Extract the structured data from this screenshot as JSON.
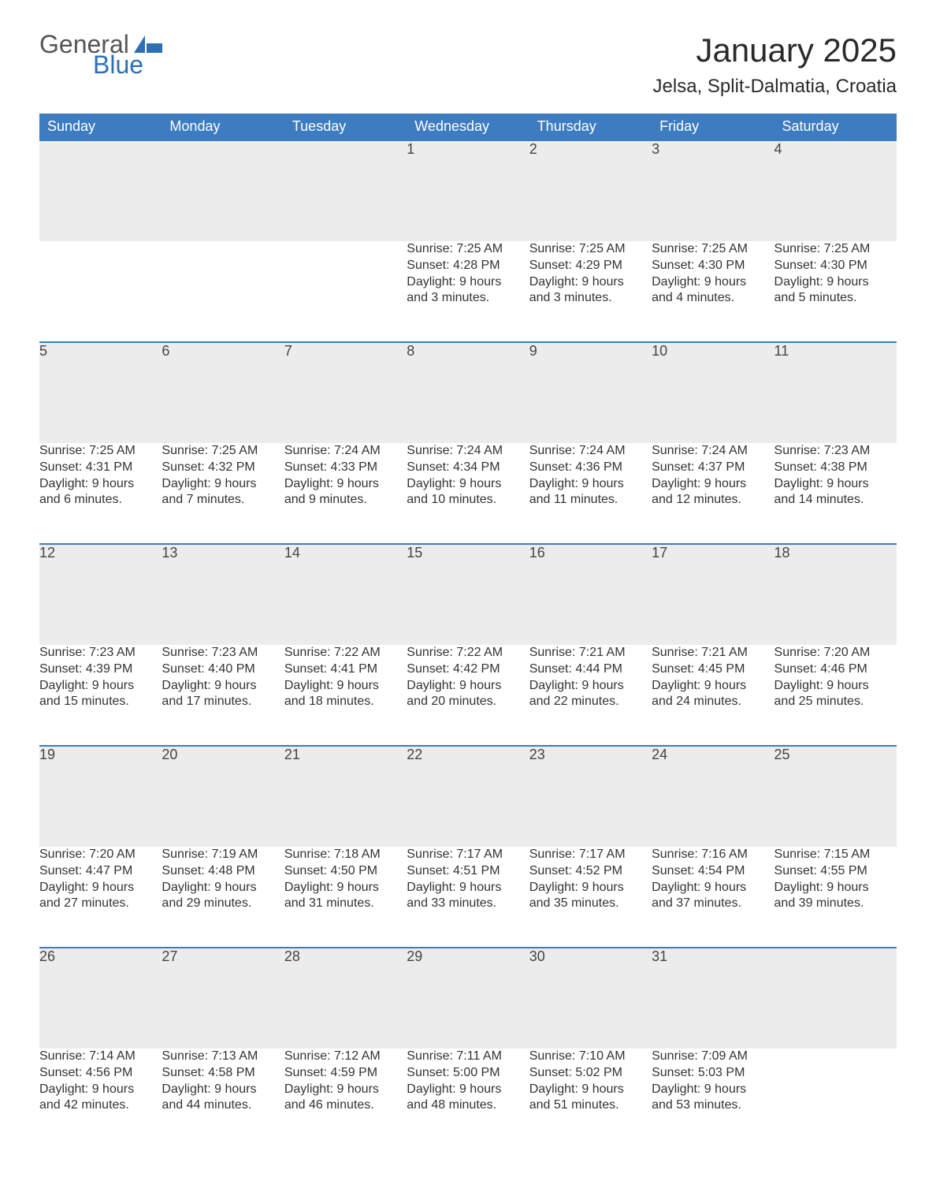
{
  "logo": {
    "text1": "General",
    "text2": "Blue",
    "shape_color": "#2e6fb4"
  },
  "title": "January 2025",
  "location": "Jelsa, Split-Dalmatia, Croatia",
  "colors": {
    "header_bg": "#3d7cc0",
    "header_text": "#ffffff",
    "daynum_bg": "#ececec",
    "border_top": "#3d7cc0",
    "body_text": "#333333",
    "page_bg": "#ffffff"
  },
  "weekdays": [
    "Sunday",
    "Monday",
    "Tuesday",
    "Wednesday",
    "Thursday",
    "Friday",
    "Saturday"
  ],
  "weeks": [
    [
      null,
      null,
      null,
      {
        "n": "1",
        "sunrise": "Sunrise: 7:25 AM",
        "sunset": "Sunset: 4:28 PM",
        "d1": "Daylight: 9 hours",
        "d2": "and 3 minutes."
      },
      {
        "n": "2",
        "sunrise": "Sunrise: 7:25 AM",
        "sunset": "Sunset: 4:29 PM",
        "d1": "Daylight: 9 hours",
        "d2": "and 3 minutes."
      },
      {
        "n": "3",
        "sunrise": "Sunrise: 7:25 AM",
        "sunset": "Sunset: 4:30 PM",
        "d1": "Daylight: 9 hours",
        "d2": "and 4 minutes."
      },
      {
        "n": "4",
        "sunrise": "Sunrise: 7:25 AM",
        "sunset": "Sunset: 4:30 PM",
        "d1": "Daylight: 9 hours",
        "d2": "and 5 minutes."
      }
    ],
    [
      {
        "n": "5",
        "sunrise": "Sunrise: 7:25 AM",
        "sunset": "Sunset: 4:31 PM",
        "d1": "Daylight: 9 hours",
        "d2": "and 6 minutes."
      },
      {
        "n": "6",
        "sunrise": "Sunrise: 7:25 AM",
        "sunset": "Sunset: 4:32 PM",
        "d1": "Daylight: 9 hours",
        "d2": "and 7 minutes."
      },
      {
        "n": "7",
        "sunrise": "Sunrise: 7:24 AM",
        "sunset": "Sunset: 4:33 PM",
        "d1": "Daylight: 9 hours",
        "d2": "and 9 minutes."
      },
      {
        "n": "8",
        "sunrise": "Sunrise: 7:24 AM",
        "sunset": "Sunset: 4:34 PM",
        "d1": "Daylight: 9 hours",
        "d2": "and 10 minutes."
      },
      {
        "n": "9",
        "sunrise": "Sunrise: 7:24 AM",
        "sunset": "Sunset: 4:36 PM",
        "d1": "Daylight: 9 hours",
        "d2": "and 11 minutes."
      },
      {
        "n": "10",
        "sunrise": "Sunrise: 7:24 AM",
        "sunset": "Sunset: 4:37 PM",
        "d1": "Daylight: 9 hours",
        "d2": "and 12 minutes."
      },
      {
        "n": "11",
        "sunrise": "Sunrise: 7:23 AM",
        "sunset": "Sunset: 4:38 PM",
        "d1": "Daylight: 9 hours",
        "d2": "and 14 minutes."
      }
    ],
    [
      {
        "n": "12",
        "sunrise": "Sunrise: 7:23 AM",
        "sunset": "Sunset: 4:39 PM",
        "d1": "Daylight: 9 hours",
        "d2": "and 15 minutes."
      },
      {
        "n": "13",
        "sunrise": "Sunrise: 7:23 AM",
        "sunset": "Sunset: 4:40 PM",
        "d1": "Daylight: 9 hours",
        "d2": "and 17 minutes."
      },
      {
        "n": "14",
        "sunrise": "Sunrise: 7:22 AM",
        "sunset": "Sunset: 4:41 PM",
        "d1": "Daylight: 9 hours",
        "d2": "and 18 minutes."
      },
      {
        "n": "15",
        "sunrise": "Sunrise: 7:22 AM",
        "sunset": "Sunset: 4:42 PM",
        "d1": "Daylight: 9 hours",
        "d2": "and 20 minutes."
      },
      {
        "n": "16",
        "sunrise": "Sunrise: 7:21 AM",
        "sunset": "Sunset: 4:44 PM",
        "d1": "Daylight: 9 hours",
        "d2": "and 22 minutes."
      },
      {
        "n": "17",
        "sunrise": "Sunrise: 7:21 AM",
        "sunset": "Sunset: 4:45 PM",
        "d1": "Daylight: 9 hours",
        "d2": "and 24 minutes."
      },
      {
        "n": "18",
        "sunrise": "Sunrise: 7:20 AM",
        "sunset": "Sunset: 4:46 PM",
        "d1": "Daylight: 9 hours",
        "d2": "and 25 minutes."
      }
    ],
    [
      {
        "n": "19",
        "sunrise": "Sunrise: 7:20 AM",
        "sunset": "Sunset: 4:47 PM",
        "d1": "Daylight: 9 hours",
        "d2": "and 27 minutes."
      },
      {
        "n": "20",
        "sunrise": "Sunrise: 7:19 AM",
        "sunset": "Sunset: 4:48 PM",
        "d1": "Daylight: 9 hours",
        "d2": "and 29 minutes."
      },
      {
        "n": "21",
        "sunrise": "Sunrise: 7:18 AM",
        "sunset": "Sunset: 4:50 PM",
        "d1": "Daylight: 9 hours",
        "d2": "and 31 minutes."
      },
      {
        "n": "22",
        "sunrise": "Sunrise: 7:17 AM",
        "sunset": "Sunset: 4:51 PM",
        "d1": "Daylight: 9 hours",
        "d2": "and 33 minutes."
      },
      {
        "n": "23",
        "sunrise": "Sunrise: 7:17 AM",
        "sunset": "Sunset: 4:52 PM",
        "d1": "Daylight: 9 hours",
        "d2": "and 35 minutes."
      },
      {
        "n": "24",
        "sunrise": "Sunrise: 7:16 AM",
        "sunset": "Sunset: 4:54 PM",
        "d1": "Daylight: 9 hours",
        "d2": "and 37 minutes."
      },
      {
        "n": "25",
        "sunrise": "Sunrise: 7:15 AM",
        "sunset": "Sunset: 4:55 PM",
        "d1": "Daylight: 9 hours",
        "d2": "and 39 minutes."
      }
    ],
    [
      {
        "n": "26",
        "sunrise": "Sunrise: 7:14 AM",
        "sunset": "Sunset: 4:56 PM",
        "d1": "Daylight: 9 hours",
        "d2": "and 42 minutes."
      },
      {
        "n": "27",
        "sunrise": "Sunrise: 7:13 AM",
        "sunset": "Sunset: 4:58 PM",
        "d1": "Daylight: 9 hours",
        "d2": "and 44 minutes."
      },
      {
        "n": "28",
        "sunrise": "Sunrise: 7:12 AM",
        "sunset": "Sunset: 4:59 PM",
        "d1": "Daylight: 9 hours",
        "d2": "and 46 minutes."
      },
      {
        "n": "29",
        "sunrise": "Sunrise: 7:11 AM",
        "sunset": "Sunset: 5:00 PM",
        "d1": "Daylight: 9 hours",
        "d2": "and 48 minutes."
      },
      {
        "n": "30",
        "sunrise": "Sunrise: 7:10 AM",
        "sunset": "Sunset: 5:02 PM",
        "d1": "Daylight: 9 hours",
        "d2": "and 51 minutes."
      },
      {
        "n": "31",
        "sunrise": "Sunrise: 7:09 AM",
        "sunset": "Sunset: 5:03 PM",
        "d1": "Daylight: 9 hours",
        "d2": "and 53 minutes."
      },
      null
    ]
  ]
}
